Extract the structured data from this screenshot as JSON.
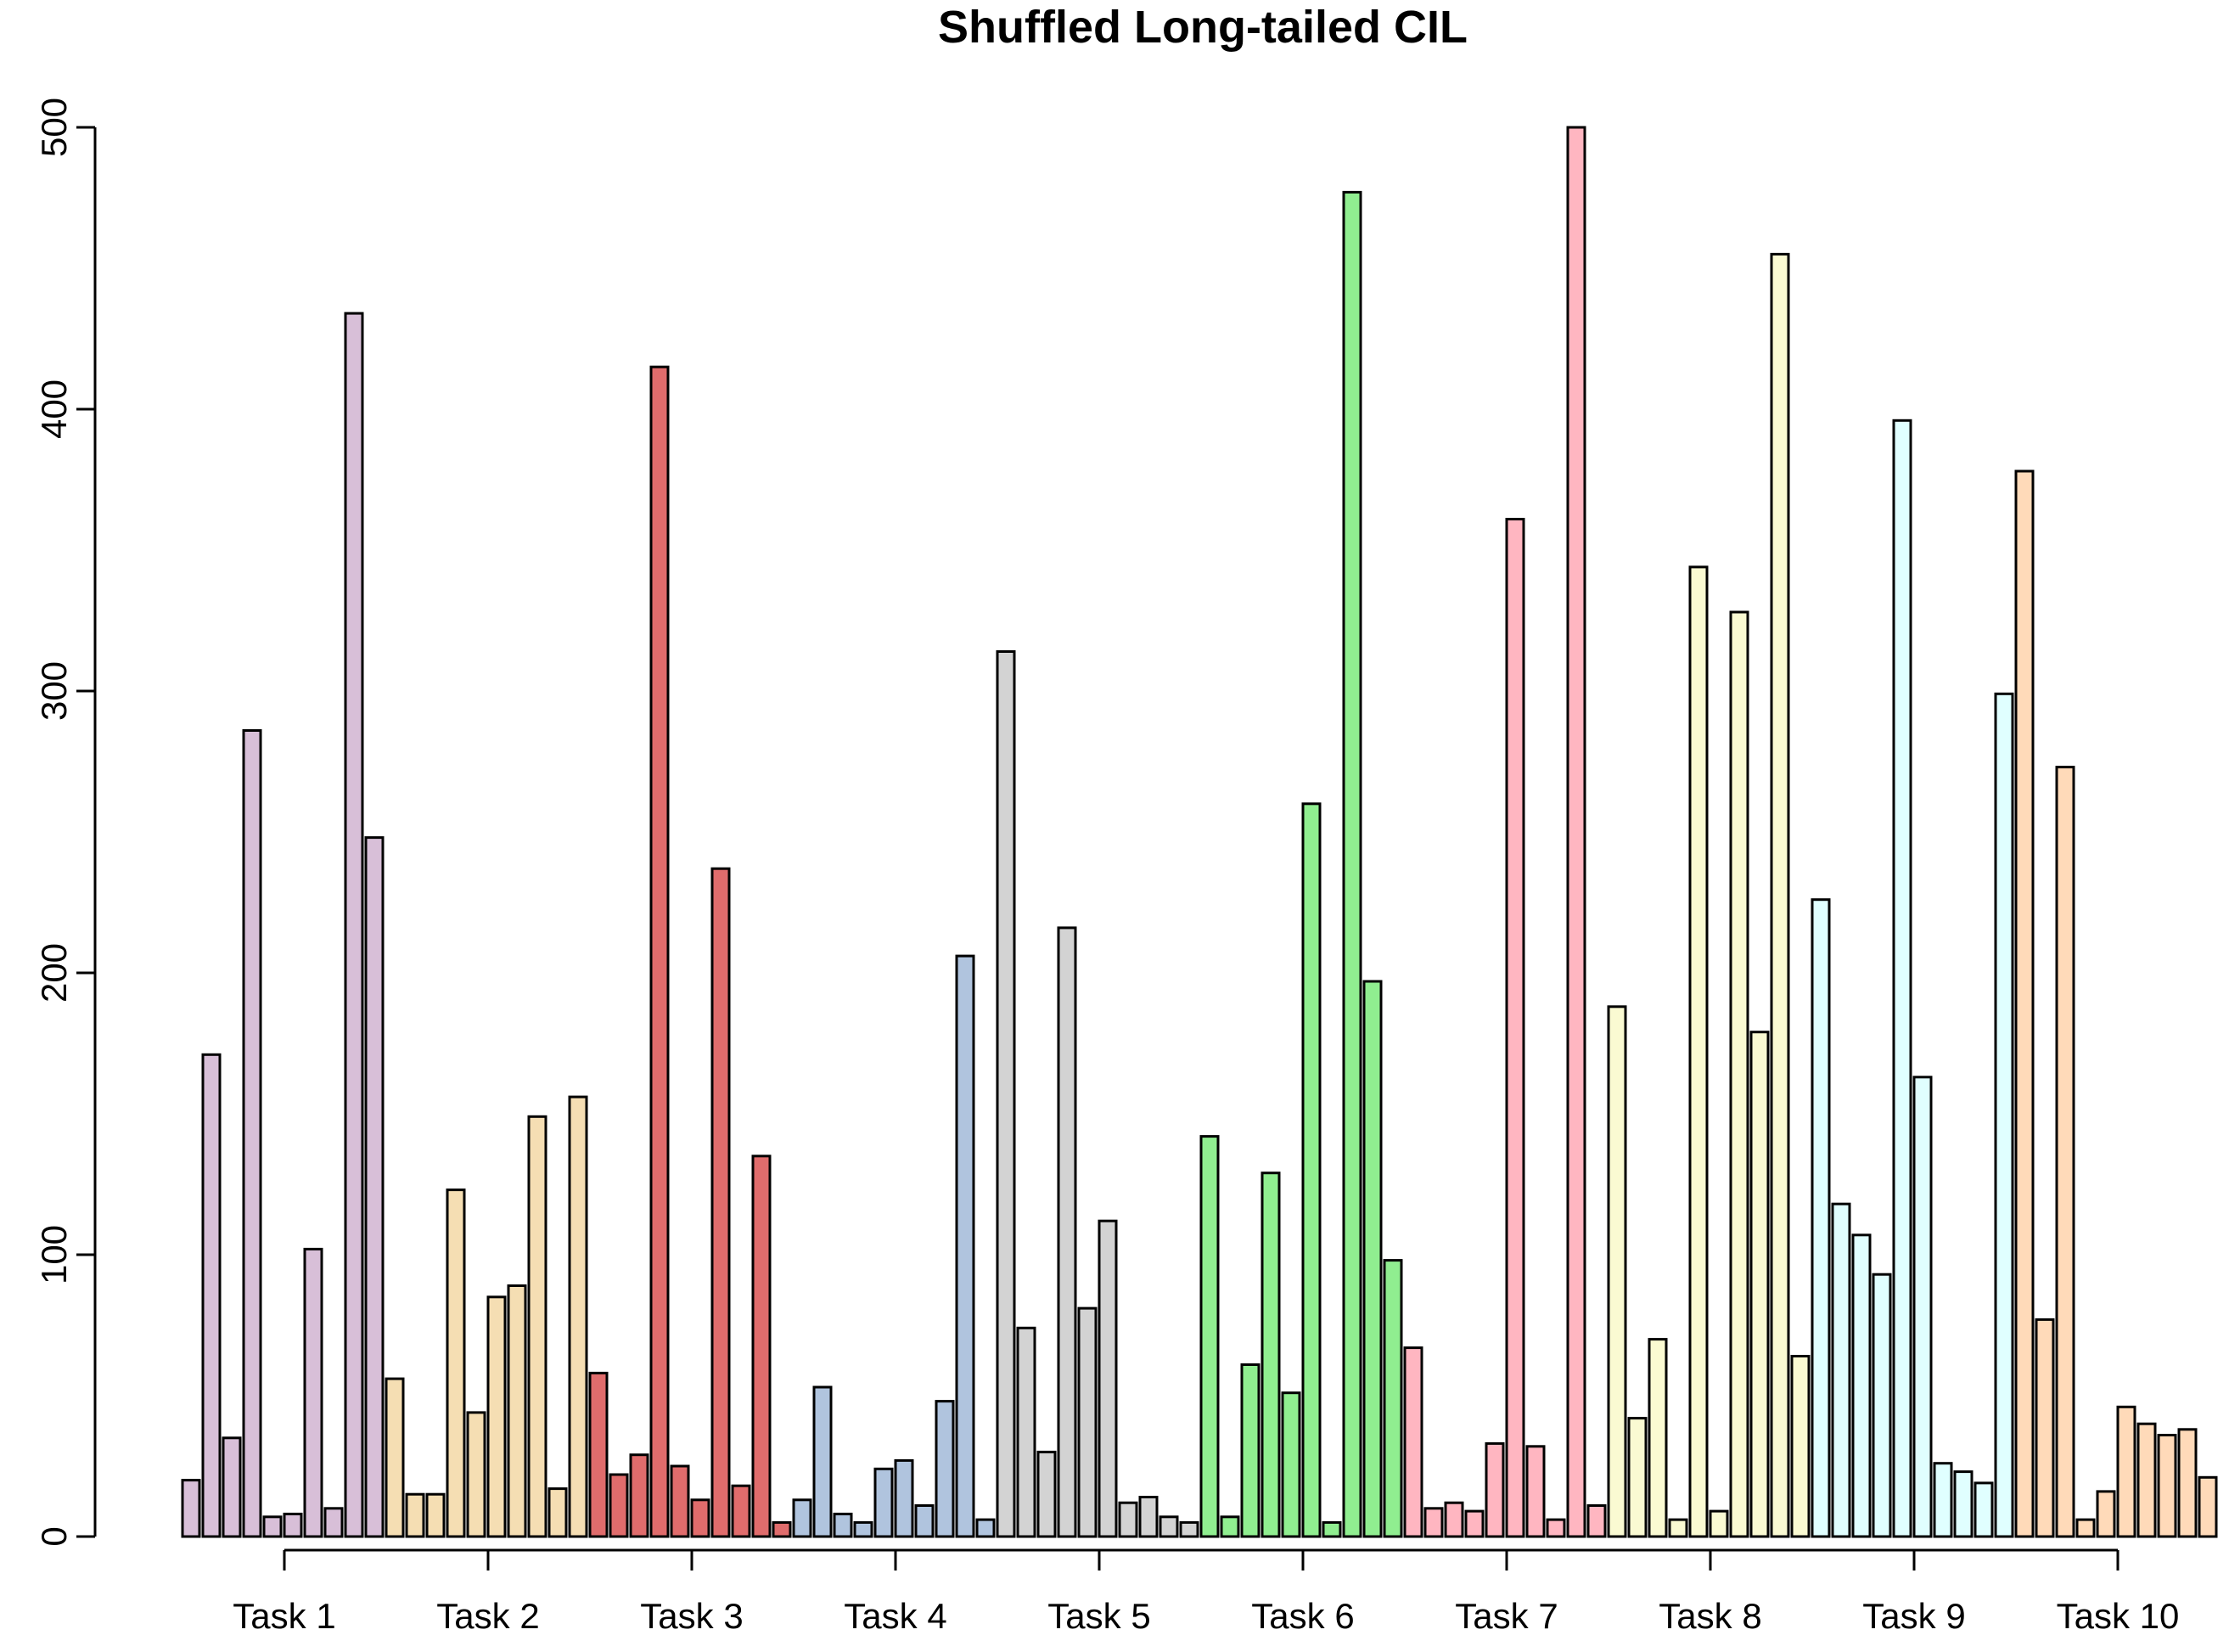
{
  "chart_data": {
    "type": "bar",
    "title": "Shuffled Long-tailed CIL",
    "xlabel": "",
    "ylabel": "",
    "ylim": [
      0,
      500
    ],
    "yticks": [
      0,
      100,
      200,
      300,
      400,
      500
    ],
    "grid": false,
    "categories": [
      "Task 1",
      "Task 2",
      "Task 3",
      "Task 4",
      "Task 5",
      "Task 6",
      "Task 7",
      "Task 8",
      "Task 9",
      "Task 10"
    ],
    "series": [
      {
        "name": "Task 1",
        "color": "#D8BFD8",
        "values": [
          20,
          171,
          35,
          286,
          7,
          8,
          102,
          10,
          434,
          248
        ]
      },
      {
        "name": "Task 2",
        "color": "#F5DEB3",
        "values": [
          56,
          15,
          15,
          123,
          44,
          85,
          89,
          149,
          17,
          156
        ]
      },
      {
        "name": "Task 3",
        "color": "#E06C6C",
        "values": [
          58,
          22,
          29,
          415,
          25,
          13,
          237,
          18,
          135,
          5
        ]
      },
      {
        "name": "Task 4",
        "color": "#B0C4DE",
        "values": [
          13,
          53,
          8,
          5,
          24,
          27,
          11,
          48,
          206,
          6
        ]
      },
      {
        "name": "Task 5",
        "color": "#D3D3D3",
        "values": [
          314,
          74,
          30,
          216,
          81,
          112,
          12,
          14,
          7,
          5
        ]
      },
      {
        "name": "Task 6",
        "color": "#90EE90",
        "values": [
          142,
          7,
          61,
          129,
          51,
          260,
          5,
          477,
          197,
          98
        ]
      },
      {
        "name": "Task 7",
        "color": "#FFB6C1",
        "values": [
          67,
          10,
          12,
          9,
          33,
          361,
          32,
          6,
          500,
          11
        ]
      },
      {
        "name": "Task 8",
        "color": "#FAFAD2",
        "values": [
          188,
          42,
          70,
          6,
          344,
          9,
          328,
          179,
          455,
          64
        ]
      },
      {
        "name": "Task 9",
        "color": "#E0FFFF",
        "values": [
          226,
          118,
          107,
          93,
          396,
          163,
          26,
          23,
          19,
          299
        ]
      },
      {
        "name": "Task 10",
        "color": "#FFDAB9",
        "values": [
          378,
          77,
          273,
          6,
          16,
          46,
          40,
          36,
          38,
          21
        ]
      }
    ]
  }
}
